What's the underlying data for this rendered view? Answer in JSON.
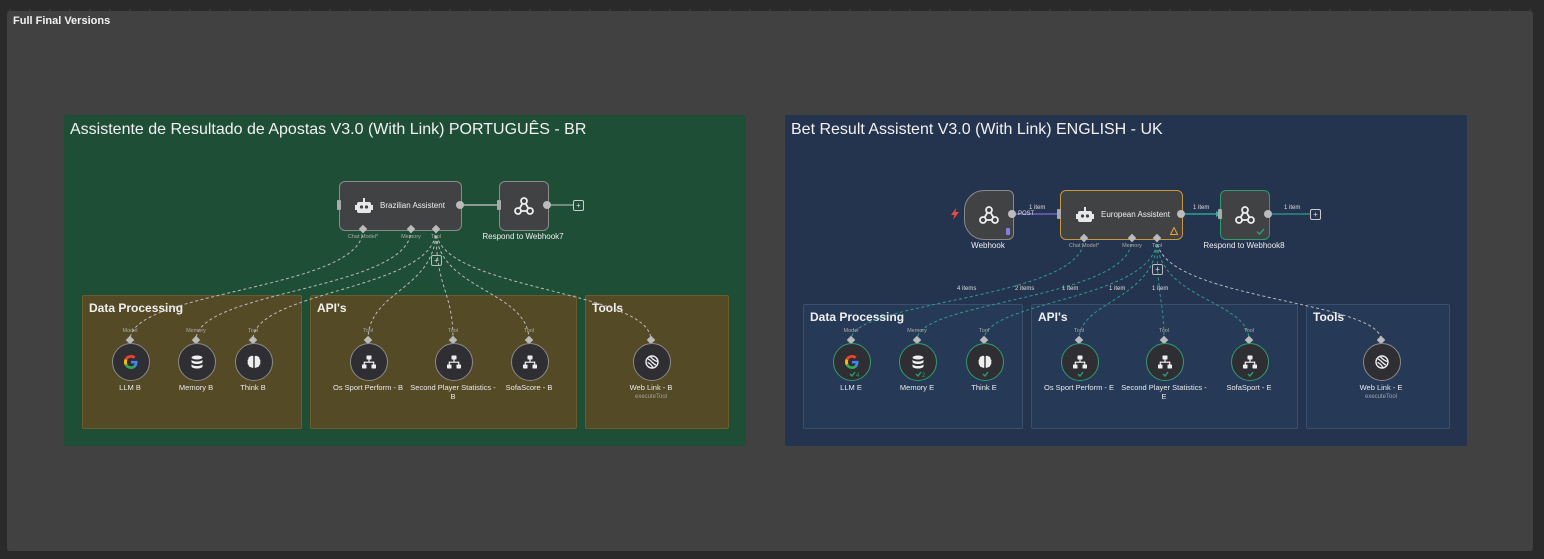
{
  "canvas": {
    "frame_title": "Full Final Versions"
  },
  "colors": {
    "br_bg": "#1f4e37",
    "uk_bg": "#24344f",
    "sub_bg": "#554a26",
    "accent_ok": "#2e9c6e"
  },
  "br": {
    "title": "Assistente de Resultado de Apostas V3.0 (With Link) PORTUGUÊS - BR",
    "agent": {
      "label": "Brazilian Assistent",
      "ports": [
        "Chat Model*",
        "Memory",
        "Tool"
      ]
    },
    "respond": {
      "label": "Respond to Webhook7"
    },
    "sections": {
      "data": "Data Processing",
      "apis": "API's",
      "tools": "Tools"
    },
    "nodes": [
      {
        "label": "LLM B",
        "port": "Model",
        "icon": "google-icon"
      },
      {
        "label": "Memory B",
        "port": "Memory",
        "icon": "database-icon"
      },
      {
        "label": "Think B",
        "port": "Tool",
        "icon": "brain-icon"
      },
      {
        "label": "Os Sport Perform - B",
        "port": "Tool",
        "icon": "network-icon"
      },
      {
        "label": "Second Player Statistics - B",
        "port": "Tool",
        "icon": "network-icon"
      },
      {
        "label": "SofaScore - B",
        "port": "Tool",
        "icon": "network-icon"
      },
      {
        "label": "Web Link - B",
        "port": "",
        "sub": "executeTool",
        "icon": "link-icon"
      }
    ]
  },
  "uk": {
    "title": "Bet Result Assistent V3.0 (With Link) ENGLISH - UK",
    "webhook": {
      "label": "Webhook",
      "method": "POST",
      "items": "1 item"
    },
    "agent": {
      "label": "European Assistent",
      "ports": [
        "Chat Model*",
        "Memory",
        "Tool"
      ],
      "items_out": "1 item"
    },
    "respond": {
      "label": "Respond to Webhook8",
      "items_out": "1 item"
    },
    "sections": {
      "data": "Data Processing",
      "apis": "API's",
      "tools": "Tools"
    },
    "edge_items": [
      "4 items",
      "2 items",
      "1 item",
      "1 item",
      "1 item"
    ],
    "nodes": [
      {
        "label": "LLM E",
        "port": "Model",
        "icon": "google-icon",
        "count": "4"
      },
      {
        "label": "Memory E",
        "port": "Memory",
        "icon": "database-icon",
        "count": "2"
      },
      {
        "label": "Think E",
        "port": "Tool",
        "icon": "brain-icon"
      },
      {
        "label": "Os Sport Perform - E",
        "port": "Tool",
        "icon": "network-icon"
      },
      {
        "label": "Second Player Statistics - E",
        "port": "Tool",
        "icon": "network-icon"
      },
      {
        "label": "SofaSport - E",
        "port": "Tool",
        "icon": "network-icon"
      },
      {
        "label": "Web Link - E",
        "port": "",
        "sub": "executeTool",
        "icon": "link-icon"
      }
    ]
  }
}
